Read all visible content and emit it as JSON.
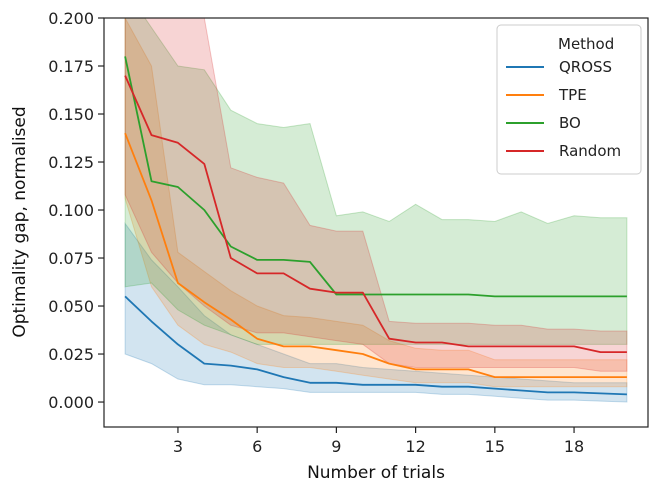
{
  "chart_data": {
    "type": "line",
    "xlabel": "Number of trials",
    "ylabel": "Optimality gap, normalised",
    "xlim": [
      0.2,
      20.8
    ],
    "ylim": [
      -0.013,
      0.2
    ],
    "x_ticks": [
      3,
      6,
      9,
      12,
      15,
      18
    ],
    "y_ticks": [
      0.0,
      0.025,
      0.05,
      0.075,
      0.1,
      0.125,
      0.15,
      0.175,
      0.2
    ],
    "y_tick_labels": [
      "0.000",
      "0.025",
      "0.050",
      "0.075",
      "0.100",
      "0.125",
      "0.150",
      "0.175",
      "0.200"
    ],
    "legend_title": "Method",
    "legend_position": "top-right",
    "x": [
      1,
      2,
      3,
      4,
      5,
      6,
      7,
      8,
      9,
      10,
      11,
      12,
      13,
      14,
      15,
      16,
      17,
      18,
      19,
      20
    ],
    "series": [
      {
        "name": "QROSS",
        "color": "#1f77b4",
        "values": [
          0.055,
          0.042,
          0.03,
          0.02,
          0.019,
          0.017,
          0.013,
          0.01,
          0.01,
          0.009,
          0.009,
          0.009,
          0.008,
          0.008,
          0.007,
          0.006,
          0.005,
          0.005,
          0.0045,
          0.004
        ],
        "lower": [
          0.025,
          0.02,
          0.012,
          0.009,
          0.009,
          0.008,
          0.007,
          0.005,
          0.005,
          0.005,
          0.005,
          0.005,
          0.004,
          0.004,
          0.003,
          0.002,
          0.001,
          0.001,
          0.0005,
          0.0
        ],
        "upper": [
          0.093,
          0.074,
          0.06,
          0.045,
          0.035,
          0.03,
          0.025,
          0.02,
          0.02,
          0.018,
          0.017,
          0.016,
          0.015,
          0.014,
          0.013,
          0.012,
          0.011,
          0.01,
          0.01,
          0.01
        ]
      },
      {
        "name": "TPE",
        "color": "#ff7f0e",
        "values": [
          0.14,
          0.105,
          0.062,
          0.052,
          0.043,
          0.033,
          0.029,
          0.029,
          0.027,
          0.025,
          0.02,
          0.017,
          0.017,
          0.017,
          0.013,
          0.013,
          0.013,
          0.013,
          0.013,
          0.013
        ],
        "lower": [
          0.106,
          0.06,
          0.04,
          0.03,
          0.026,
          0.02,
          0.018,
          0.018,
          0.016,
          0.014,
          0.012,
          0.01,
          0.01,
          0.01,
          0.008,
          0.008,
          0.008,
          0.008,
          0.008,
          0.008
        ],
        "upper": [
          0.2,
          0.175,
          0.078,
          0.068,
          0.058,
          0.05,
          0.045,
          0.044,
          0.042,
          0.04,
          0.032,
          0.028,
          0.027,
          0.027,
          0.022,
          0.022,
          0.022,
          0.022,
          0.022,
          0.022
        ]
      },
      {
        "name": "BO",
        "color": "#2ca02c",
        "values": [
          0.18,
          0.115,
          0.112,
          0.1,
          0.081,
          0.074,
          0.074,
          0.073,
          0.056,
          0.056,
          0.056,
          0.056,
          0.056,
          0.056,
          0.055,
          0.055,
          0.055,
          0.055,
          0.055,
          0.055
        ],
        "lower": [
          0.06,
          0.062,
          0.048,
          0.04,
          0.035,
          0.03,
          0.03,
          0.03,
          0.03,
          0.03,
          0.03,
          0.03,
          0.03,
          0.03,
          0.03,
          0.03,
          0.03,
          0.03,
          0.03,
          0.03
        ],
        "upper": [
          0.215,
          0.195,
          0.175,
          0.173,
          0.152,
          0.145,
          0.143,
          0.145,
          0.097,
          0.099,
          0.094,
          0.103,
          0.095,
          0.095,
          0.094,
          0.099,
          0.093,
          0.097,
          0.096,
          0.096
        ]
      },
      {
        "name": "Random",
        "color": "#d62728",
        "values": [
          0.17,
          0.139,
          0.135,
          0.124,
          0.075,
          0.067,
          0.067,
          0.059,
          0.057,
          0.057,
          0.033,
          0.031,
          0.031,
          0.029,
          0.029,
          0.029,
          0.029,
          0.029,
          0.026,
          0.026
        ],
        "lower": [
          0.108,
          0.078,
          0.062,
          0.05,
          0.04,
          0.036,
          0.036,
          0.034,
          0.032,
          0.03,
          0.02,
          0.018,
          0.018,
          0.018,
          0.018,
          0.018,
          0.018,
          0.018,
          0.016,
          0.016
        ],
        "upper": [
          0.22,
          0.215,
          0.215,
          0.2,
          0.122,
          0.117,
          0.114,
          0.092,
          0.089,
          0.089,
          0.042,
          0.041,
          0.041,
          0.041,
          0.04,
          0.04,
          0.038,
          0.038,
          0.037,
          0.037
        ]
      }
    ]
  }
}
